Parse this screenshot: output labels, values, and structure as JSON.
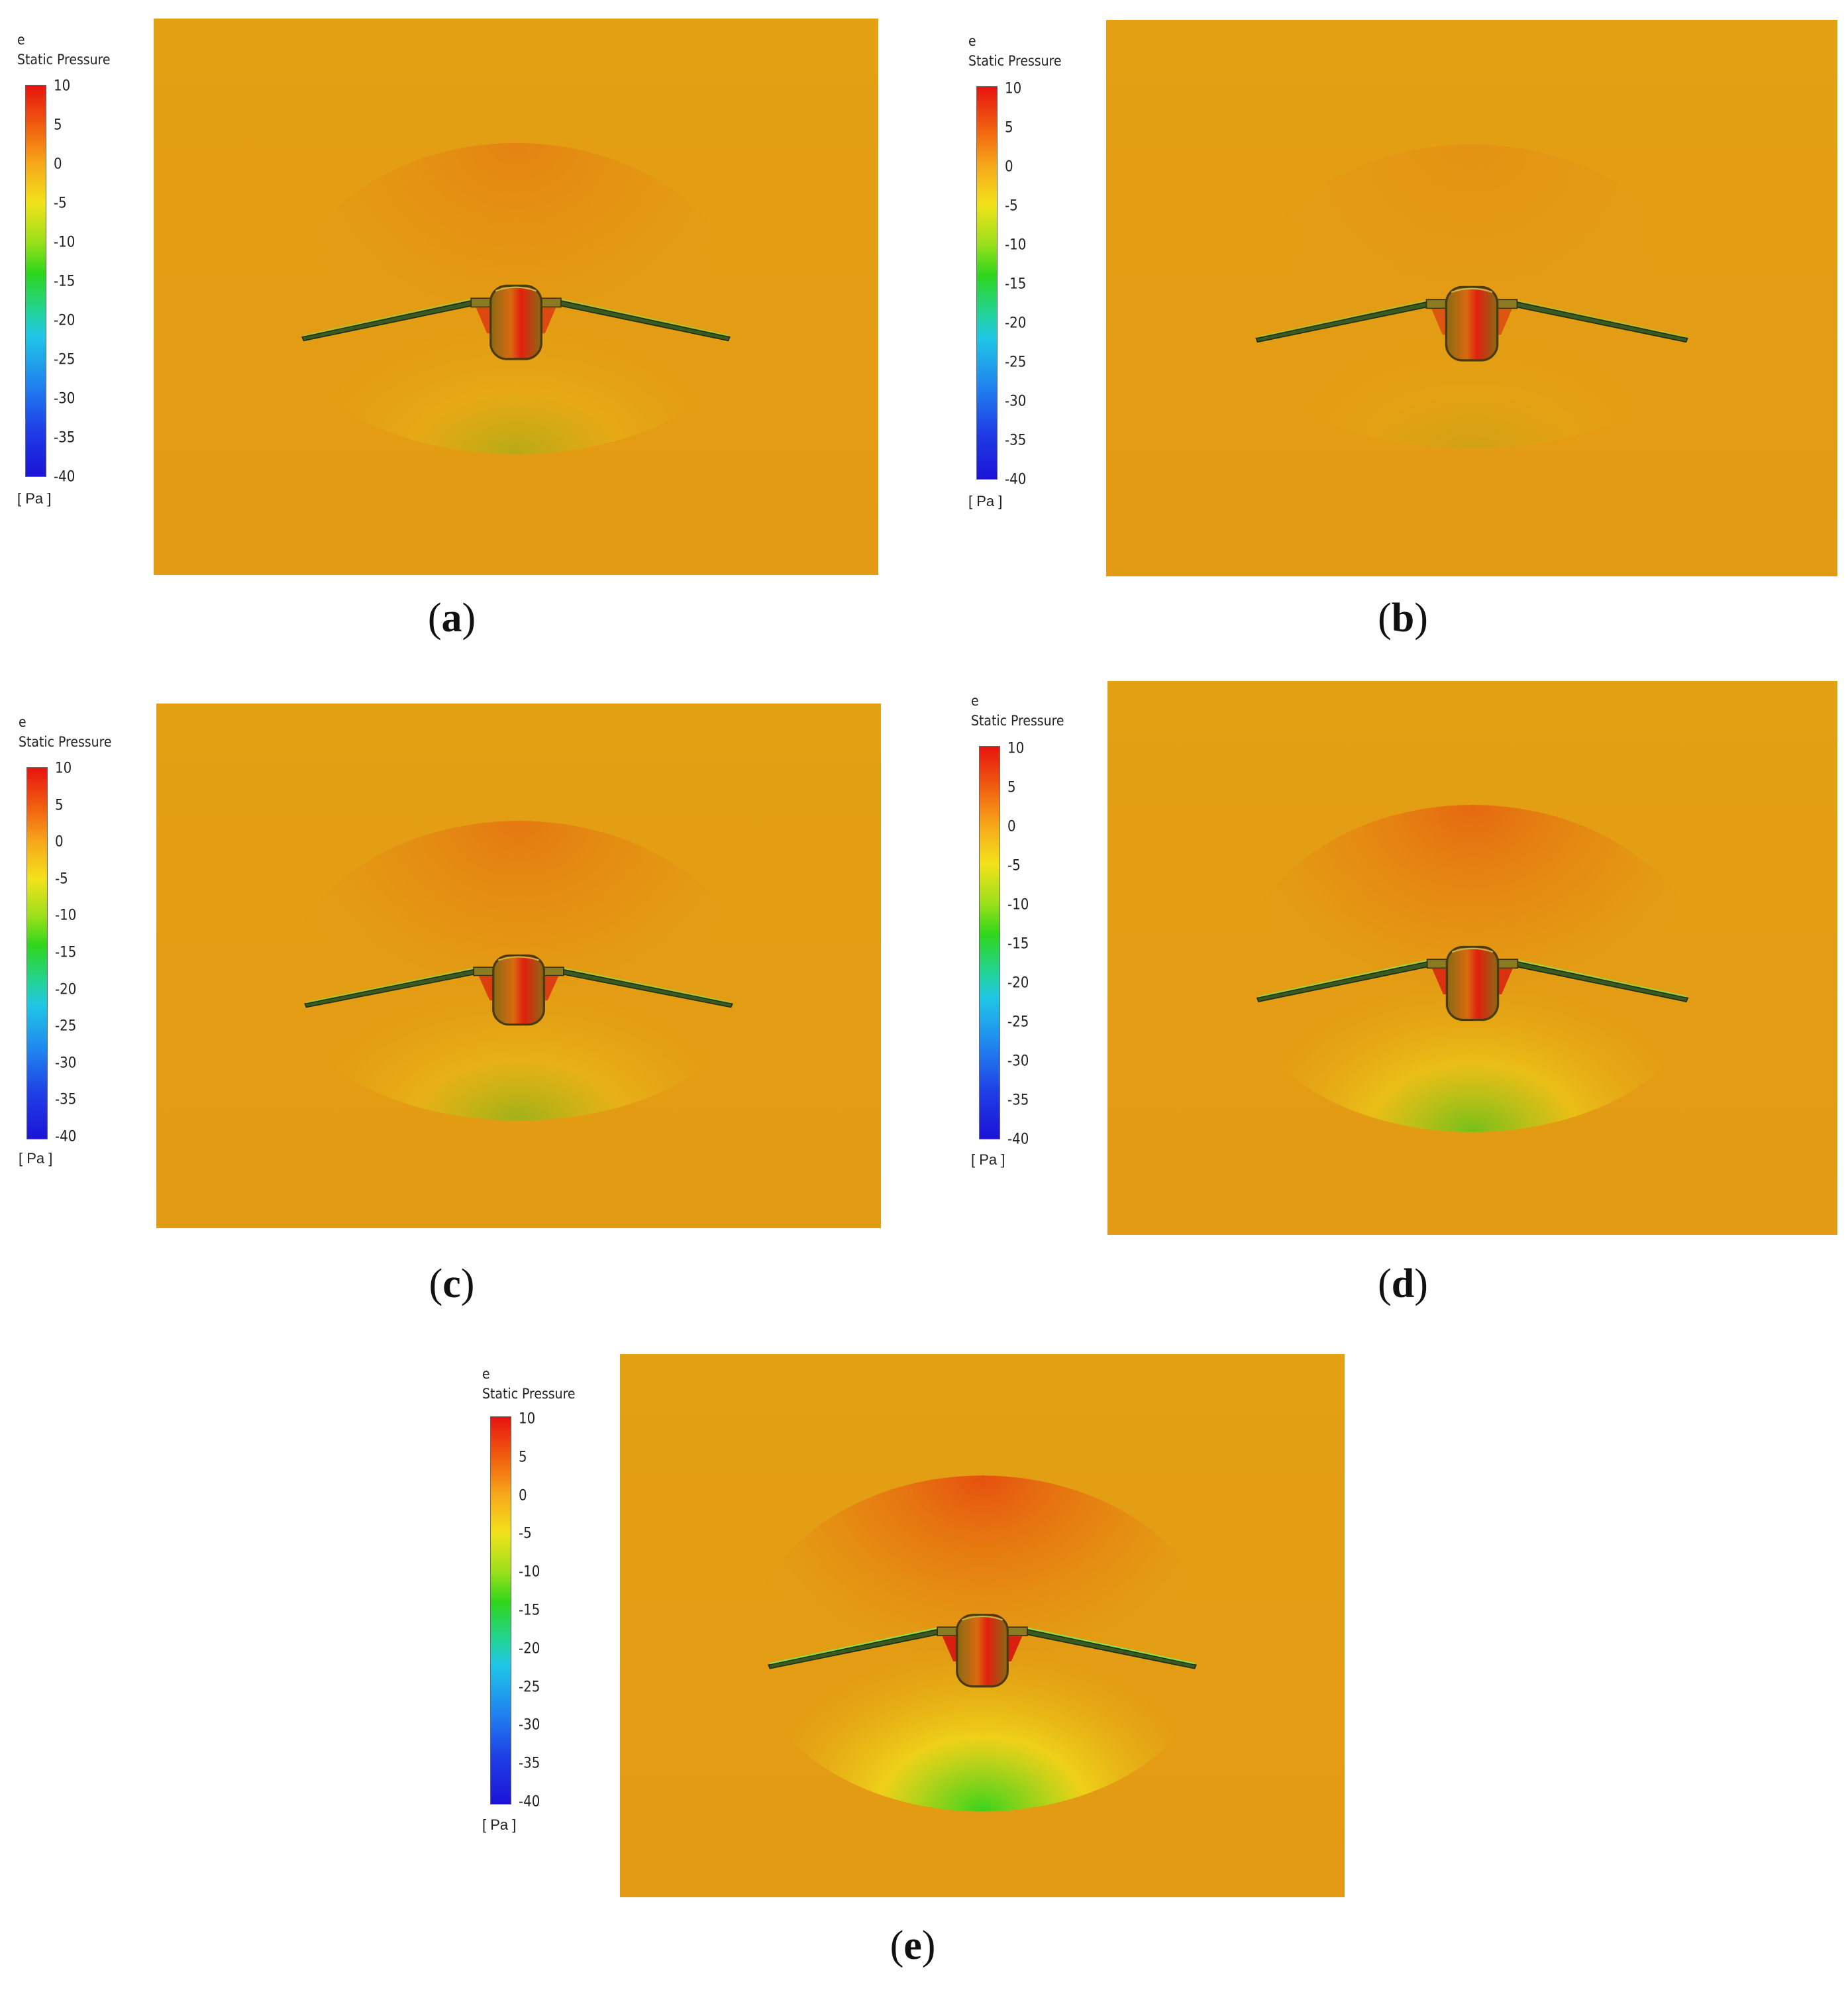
{
  "legend": {
    "variable_prefix": "e",
    "title": "Static Pressure",
    "ticks": [
      "10",
      "5",
      "0",
      "-5",
      "-10",
      "-15",
      "-20",
      "-25",
      "-30",
      "-35",
      "-40"
    ],
    "unit": "[ Pa ]"
  },
  "colors": {
    "background_field": "#e39a14",
    "high_pressure": "#e8130f",
    "low_pressure": "#1c14d8",
    "suction_green": "#2ed61c",
    "suction_yellow": "#f2e21a"
  },
  "panels": [
    {
      "id": "a",
      "caption_letter": "a",
      "suction_level": 0.25,
      "pressure_level": 0.35
    },
    {
      "id": "b",
      "caption_letter": "b",
      "suction_level": 0.1,
      "pressure_level": 0.15
    },
    {
      "id": "c",
      "caption_letter": "c",
      "suction_level": 0.4,
      "pressure_level": 0.5
    },
    {
      "id": "d",
      "caption_letter": "d",
      "suction_level": 0.65,
      "pressure_level": 0.7
    },
    {
      "id": "e",
      "caption_letter": "e",
      "suction_level": 1.0,
      "pressure_level": 1.0
    }
  ]
}
